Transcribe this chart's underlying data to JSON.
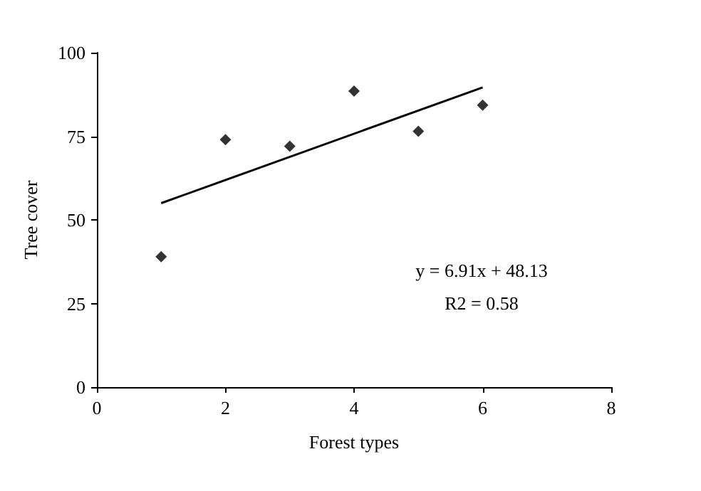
{
  "chart_data": {
    "type": "scatter",
    "xlabel": "Forest types",
    "ylabel": "Tree cover",
    "xlim": [
      0,
      8
    ],
    "xticks": [
      0,
      2,
      4,
      6,
      8
    ],
    "ylim": [
      0,
      100
    ],
    "yticks": [
      0,
      25,
      50,
      75,
      100
    ],
    "grid": false,
    "marker": "diamond",
    "series": [
      {
        "color": "#000000",
        "x": [
          1,
          2,
          3,
          4,
          5,
          6
        ],
        "values": [
          39,
          74,
          72,
          88.5,
          76.5,
          84.3
        ]
      },
      {
        "type": "line",
        "color": "#000000",
        "marker": "none",
        "line_style": "solid",
        "x": [
          1,
          6
        ],
        "values": [
          55,
          89.6
        ]
      }
    ],
    "annotations": [
      "y = 6.91x + 48.13",
      "R2 = 0.58"
    ]
  }
}
